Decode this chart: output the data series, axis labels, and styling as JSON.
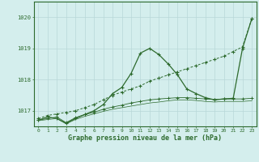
{
  "line1_x": [
    0,
    1,
    2,
    3,
    4,
    5,
    6,
    7,
    8,
    9,
    10,
    11,
    12,
    13,
    14,
    15,
    16,
    17,
    18,
    19,
    20,
    21,
    22,
    23
  ],
  "line1_y": [
    1016.75,
    1016.85,
    1016.9,
    1016.95,
    1017.0,
    1017.1,
    1017.2,
    1017.35,
    1017.5,
    1017.6,
    1017.7,
    1017.8,
    1017.95,
    1018.05,
    1018.15,
    1018.25,
    1018.35,
    1018.45,
    1018.55,
    1018.65,
    1018.75,
    1018.9,
    1019.05,
    1019.95
  ],
  "line2_x": [
    0,
    1,
    2,
    3,
    4,
    5,
    6,
    7,
    8,
    9,
    10,
    11,
    12,
    13,
    14,
    15,
    16,
    17,
    18,
    19,
    20,
    21,
    22,
    23
  ],
  "line2_y": [
    1016.7,
    1016.8,
    1016.75,
    1016.6,
    1016.75,
    1016.88,
    1017.0,
    1017.2,
    1017.55,
    1017.75,
    1018.2,
    1018.85,
    1019.0,
    1018.8,
    1018.5,
    1018.15,
    1017.7,
    1017.55,
    1017.42,
    1017.35,
    1017.38,
    1017.4,
    1019.0,
    1019.95
  ],
  "line3_x": [
    0,
    1,
    2,
    3,
    4,
    5,
    6,
    7,
    8,
    9,
    10,
    11,
    12,
    13,
    14,
    15,
    16,
    17,
    18,
    19,
    20,
    21,
    22,
    23
  ],
  "line3_y": [
    1016.7,
    1016.75,
    1016.8,
    1016.62,
    1016.78,
    1016.88,
    1016.95,
    1017.05,
    1017.12,
    1017.18,
    1017.25,
    1017.3,
    1017.35,
    1017.38,
    1017.4,
    1017.42,
    1017.42,
    1017.4,
    1017.38,
    1017.36,
    1017.38,
    1017.38,
    1017.38,
    1017.4
  ],
  "line4_x": [
    0,
    1,
    2,
    3,
    4,
    5,
    6,
    7,
    8,
    9,
    10,
    11,
    12,
    13,
    14,
    15,
    16,
    17,
    18,
    19,
    20,
    21,
    22,
    23
  ],
  "line4_y": [
    1016.68,
    1016.72,
    1016.75,
    1016.58,
    1016.72,
    1016.82,
    1016.9,
    1016.98,
    1017.05,
    1017.1,
    1017.15,
    1017.2,
    1017.25,
    1017.28,
    1017.32,
    1017.35,
    1017.35,
    1017.33,
    1017.3,
    1017.28,
    1017.3,
    1017.3,
    1017.3,
    1017.32
  ],
  "bg_color": "#d4eeed",
  "grid_color": "#b8d8d8",
  "line_color": "#2d6a2d",
  "xlabel": "Graphe pression niveau de la mer (hPa)",
  "ylim": [
    1016.5,
    1020.5
  ],
  "xlim": [
    -0.5,
    23.5
  ],
  "yticks": [
    1017,
    1018,
    1019,
    1020
  ],
  "xticks": [
    0,
    1,
    2,
    3,
    4,
    5,
    6,
    7,
    8,
    9,
    10,
    11,
    12,
    13,
    14,
    15,
    16,
    17,
    18,
    19,
    20,
    21,
    22,
    23
  ]
}
